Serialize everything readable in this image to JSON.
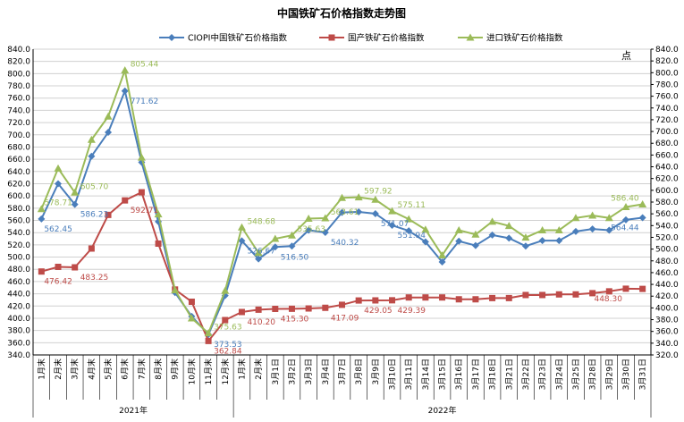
{
  "chart_data": {
    "type": "line",
    "title": "中国铁矿石价格指数走势图",
    "right_axis_unit": "点",
    "ylim": [
      340,
      840
    ],
    "ytick_step": 20,
    "y2lim": [
      320,
      840
    ],
    "y2tick_step": 20,
    "legend_position": "top",
    "grid": true,
    "categories": [
      "1月末",
      "2月末",
      "3月末",
      "4月末",
      "5月末",
      "6月末",
      "7月末",
      "8月末",
      "9月末",
      "10月末",
      "11月末",
      "12月末",
      "1月末",
      "2月末",
      "3月1日",
      "3月2日",
      "3月3日",
      "3月4日",
      "3月7日",
      "3月8日",
      "3月9日",
      "3月10日",
      "3月11日",
      "3月14日",
      "3月15日",
      "3月16日",
      "3月17日",
      "3月18日",
      "3月21日",
      "3月22日",
      "3月23日",
      "3月24日",
      "3月25日",
      "3月28日",
      "3月29日",
      "3月30日",
      "3月31日"
    ],
    "year_groups": [
      {
        "label": "2021年",
        "start": 0,
        "end": 11
      },
      {
        "label": "2022年",
        "start": 12,
        "end": 36
      }
    ],
    "series": [
      {
        "name": "CIOPI中国铁矿石价格指数",
        "color": "#4a7ebb",
        "marker": "diamond",
        "values": [
          562.45,
          620,
          586.23,
          665,
          704,
          771.62,
          655,
          558,
          442,
          403,
          373.53,
          437,
          526.67,
          497,
          516.5,
          518,
          544,
          540.32,
          573,
          574,
          571.07,
          551.94,
          543,
          525,
          492,
          526,
          519,
          536,
          531,
          518,
          527,
          527,
          542,
          546,
          544,
          561,
          564.44
        ]
      },
      {
        "name": "国产铁矿石价格指数",
        "color": "#be4b48",
        "marker": "square",
        "values": [
          476.42,
          484,
          483.25,
          514,
          569,
          592.71,
          606,
          522,
          447,
          427,
          362.84,
          397,
          410.2,
          414,
          415.3,
          415.5,
          416,
          417.09,
          422,
          429.05,
          429.2,
          429.39,
          434,
          434,
          434,
          431,
          431,
          433,
          433,
          438,
          438,
          439,
          439,
          441,
          444,
          448.3,
          448
        ]
      },
      {
        "name": "进口铁矿石价格指数",
        "color": "#9bbb59",
        "marker": "triangle",
        "values": [
          578.71,
          645,
          605.7,
          692,
          730,
          805.44,
          663,
          570,
          446,
          400,
          375.63,
          445,
          548.68,
          507,
          530,
          535.63,
          563,
          563.61,
          597,
          597.92,
          594,
          575.11,
          562,
          545,
          503,
          544,
          537,
          558,
          551,
          532,
          544,
          544,
          564,
          568,
          564,
          582,
          586.4
        ]
      }
    ],
    "data_labels": [
      {
        "series": 0,
        "index": 0,
        "text": "562.45"
      },
      {
        "series": 0,
        "index": 2,
        "text": "586.23"
      },
      {
        "series": 0,
        "index": 5,
        "text": "771.62"
      },
      {
        "series": 0,
        "index": 10,
        "text": "373.53"
      },
      {
        "series": 0,
        "index": 12,
        "text": "526.67"
      },
      {
        "series": 0,
        "index": 14,
        "text": "516.50"
      },
      {
        "series": 0,
        "index": 17,
        "text": "540.32"
      },
      {
        "series": 0,
        "index": 20,
        "text": "571.07"
      },
      {
        "series": 0,
        "index": 21,
        "text": "551.94"
      },
      {
        "series": 0,
        "index": 36,
        "text": "564.44"
      },
      {
        "series": 1,
        "index": 0,
        "text": "476.42"
      },
      {
        "series": 1,
        "index": 2,
        "text": "483.25"
      },
      {
        "series": 1,
        "index": 5,
        "text": "592.71"
      },
      {
        "series": 1,
        "index": 10,
        "text": "362.84"
      },
      {
        "series": 1,
        "index": 12,
        "text": "410.20"
      },
      {
        "series": 1,
        "index": 14,
        "text": "415.30"
      },
      {
        "series": 1,
        "index": 17,
        "text": "417.09"
      },
      {
        "series": 1,
        "index": 19,
        "text": "429.05"
      },
      {
        "series": 1,
        "index": 21,
        "text": "429.39"
      },
      {
        "series": 1,
        "index": 35,
        "text": "448.30"
      },
      {
        "series": 2,
        "index": 0,
        "text": "578.71"
      },
      {
        "series": 2,
        "index": 2,
        "text": "605.70"
      },
      {
        "series": 2,
        "index": 5,
        "text": "805.44"
      },
      {
        "series": 2,
        "index": 10,
        "text": "375.63"
      },
      {
        "series": 2,
        "index": 12,
        "text": "548.68"
      },
      {
        "series": 2,
        "index": 15,
        "text": "535.63"
      },
      {
        "series": 2,
        "index": 17,
        "text": "563.61"
      },
      {
        "series": 2,
        "index": 19,
        "text": "597.92"
      },
      {
        "series": 2,
        "index": 21,
        "text": "575.11"
      },
      {
        "series": 2,
        "index": 36,
        "text": "586.40"
      }
    ]
  }
}
